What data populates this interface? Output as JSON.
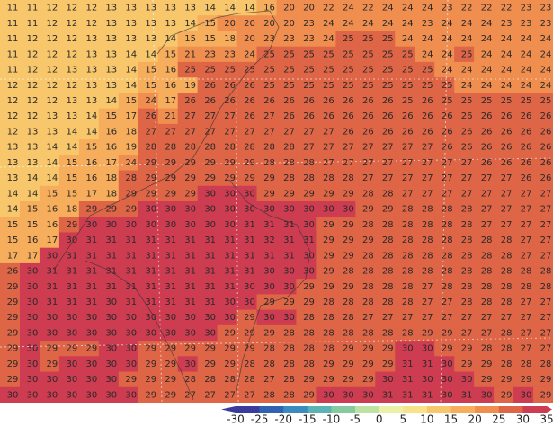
{
  "grid": {
    "rows": [
      [
        11,
        11,
        12,
        12,
        12,
        13,
        13,
        13,
        13,
        13,
        14,
        14,
        14,
        16,
        20,
        20,
        22,
        24,
        22,
        24,
        24,
        24,
        23,
        22,
        22,
        22,
        23,
        23
      ],
      [
        11,
        11,
        12,
        12,
        12,
        13,
        13,
        13,
        13,
        14,
        15,
        20,
        20,
        20,
        20,
        23,
        24,
        24,
        24,
        24,
        24,
        23,
        24,
        24,
        24,
        23,
        23,
        23
      ],
      [
        11,
        12,
        12,
        12,
        13,
        13,
        13,
        13,
        14,
        15,
        15,
        18,
        20,
        23,
        23,
        23,
        24,
        25,
        25,
        25,
        24,
        24,
        24,
        24,
        24,
        24,
        24,
        24
      ],
      [
        11,
        12,
        12,
        12,
        13,
        13,
        14,
        14,
        15,
        21,
        23,
        23,
        24,
        25,
        25,
        25,
        25,
        25,
        25,
        25,
        25,
        24,
        24,
        25,
        24,
        24,
        24,
        24
      ],
      [
        11,
        12,
        12,
        13,
        13,
        13,
        14,
        15,
        16,
        25,
        25,
        25,
        25,
        25,
        25,
        25,
        25,
        25,
        25,
        25,
        25,
        25,
        24,
        24,
        24,
        24,
        24,
        24
      ],
      [
        12,
        12,
        12,
        12,
        13,
        13,
        14,
        15,
        16,
        19,
        26,
        26,
        26,
        25,
        25,
        25,
        25,
        25,
        25,
        25,
        25,
        25,
        25,
        24,
        24,
        24,
        24,
        24
      ],
      [
        12,
        12,
        12,
        13,
        13,
        14,
        15,
        24,
        17,
        26,
        26,
        26,
        26,
        26,
        26,
        26,
        26,
        26,
        26,
        26,
        25,
        26,
        25,
        25,
        25,
        25,
        25,
        25
      ],
      [
        12,
        12,
        13,
        13,
        14,
        15,
        17,
        26,
        21,
        27,
        27,
        27,
        26,
        27,
        26,
        26,
        26,
        26,
        26,
        26,
        26,
        26,
        26,
        26,
        26,
        26,
        26,
        26
      ],
      [
        12,
        13,
        13,
        14,
        14,
        16,
        18,
        27,
        27,
        27,
        27,
        27,
        27,
        27,
        27,
        27,
        27,
        26,
        26,
        26,
        26,
        26,
        26,
        26,
        26,
        26,
        26,
        26
      ],
      [
        13,
        13,
        14,
        14,
        15,
        16,
        19,
        28,
        28,
        28,
        28,
        28,
        28,
        28,
        28,
        27,
        27,
        27,
        27,
        27,
        27,
        27,
        26,
        26,
        26,
        26,
        26,
        26
      ],
      [
        13,
        13,
        14,
        15,
        16,
        17,
        24,
        29,
        29,
        29,
        29,
        29,
        29,
        28,
        28,
        28,
        27,
        27,
        27,
        27,
        27,
        27,
        27,
        27,
        26,
        26,
        26,
        26
      ],
      [
        13,
        14,
        14,
        15,
        16,
        18,
        28,
        29,
        29,
        29,
        29,
        29,
        29,
        29,
        28,
        28,
        28,
        28,
        27,
        27,
        27,
        27,
        27,
        27,
        27,
        27,
        26,
        26
      ],
      [
        14,
        14,
        15,
        15,
        17,
        18,
        29,
        29,
        29,
        29,
        30,
        30,
        30,
        29,
        29,
        29,
        29,
        29,
        28,
        28,
        27,
        27,
        27,
        27,
        27,
        27,
        27,
        27
      ],
      [
        14,
        15,
        16,
        18,
        29,
        29,
        29,
        30,
        30,
        30,
        30,
        30,
        30,
        30,
        30,
        30,
        30,
        30,
        29,
        29,
        28,
        28,
        28,
        28,
        27,
        27,
        27,
        27
      ],
      [
        15,
        15,
        16,
        29,
        30,
        30,
        30,
        30,
        30,
        30,
        30,
        30,
        31,
        31,
        31,
        30,
        29,
        29,
        28,
        28,
        28,
        28,
        28,
        28,
        27,
        27,
        27,
        27
      ],
      [
        15,
        16,
        17,
        30,
        31,
        31,
        31,
        31,
        31,
        31,
        31,
        31,
        31,
        32,
        31,
        31,
        29,
        29,
        29,
        28,
        28,
        28,
        28,
        28,
        28,
        28,
        27,
        27
      ],
      [
        17,
        17,
        30,
        31,
        31,
        31,
        31,
        31,
        31,
        31,
        31,
        31,
        31,
        31,
        31,
        30,
        29,
        29,
        28,
        28,
        28,
        28,
        28,
        28,
        28,
        28,
        27,
        27
      ],
      [
        26,
        30,
        31,
        31,
        31,
        31,
        31,
        31,
        31,
        31,
        31,
        31,
        31,
        30,
        30,
        30,
        29,
        28,
        28,
        28,
        28,
        28,
        28,
        28,
        28,
        28,
        28,
        28
      ],
      [
        29,
        30,
        31,
        31,
        31,
        31,
        31,
        31,
        31,
        31,
        31,
        31,
        30,
        30,
        30,
        29,
        29,
        29,
        28,
        28,
        28,
        27,
        28,
        28,
        28,
        28,
        28,
        28
      ],
      [
        29,
        30,
        31,
        31,
        31,
        30,
        31,
        31,
        31,
        31,
        31,
        30,
        30,
        29,
        29,
        29,
        28,
        28,
        28,
        28,
        28,
        27,
        27,
        28,
        28,
        28,
        27,
        27
      ],
      [
        29,
        30,
        30,
        30,
        30,
        30,
        30,
        30,
        30,
        30,
        30,
        30,
        29,
        30,
        30,
        28,
        28,
        28,
        27,
        27,
        27,
        27,
        27,
        27,
        27,
        27,
        27,
        27
      ],
      [
        29,
        30,
        30,
        30,
        30,
        30,
        30,
        30,
        30,
        30,
        30,
        29,
        29,
        29,
        28,
        28,
        28,
        28,
        28,
        28,
        28,
        29,
        29,
        27,
        27,
        28,
        27,
        27
      ],
      [
        29,
        30,
        29,
        29,
        29,
        30,
        30,
        29,
        29,
        29,
        29,
        29,
        29,
        28,
        28,
        28,
        28,
        29,
        29,
        29,
        30,
        30,
        29,
        29,
        28,
        28,
        27,
        27
      ],
      [
        29,
        30,
        29,
        30,
        30,
        30,
        30,
        29,
        29,
        30,
        29,
        29,
        28,
        28,
        28,
        28,
        29,
        29,
        29,
        29,
        31,
        31,
        30,
        29,
        29,
        28,
        28,
        28
      ],
      [
        29,
        30,
        30,
        30,
        30,
        30,
        29,
        29,
        29,
        28,
        28,
        28,
        28,
        27,
        28,
        29,
        29,
        29,
        29,
        30,
        31,
        30,
        30,
        30,
        29,
        29,
        29,
        29
      ],
      [
        30,
        30,
        30,
        30,
        30,
        30,
        30,
        29,
        29,
        27,
        27,
        27,
        27,
        28,
        28,
        29,
        30,
        30,
        30,
        31,
        31,
        31,
        30,
        31,
        30,
        29,
        30,
        29
      ]
    ]
  },
  "colorbar": {
    "labels": [
      -30,
      -25,
      -20,
      -15,
      -10,
      -5,
      0,
      5,
      10,
      15,
      20,
      25,
      30,
      35
    ],
    "colors": [
      "#3b3b9e",
      "#2f62b0",
      "#3a8cc0",
      "#5cb3b3",
      "#86cba0",
      "#bde3a2",
      "#ebf2a8",
      "#f9e38a",
      "#f8c76c",
      "#f6ad5c",
      "#f08e4f",
      "#df6547",
      "#cd3c50"
    ]
  }
}
